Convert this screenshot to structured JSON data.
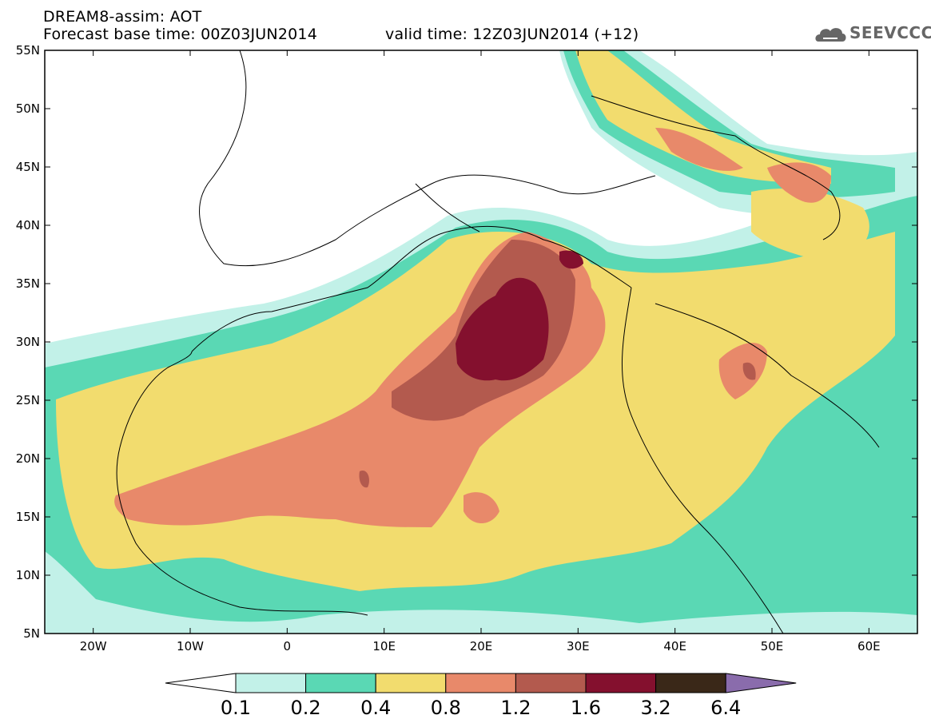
{
  "header": {
    "title_line1": "DREAM8-assim: AOT",
    "base_time": "Forecast base time: 00Z03JUN2014",
    "valid_time": "valid time: 12Z03JUN2014 (+12)",
    "logo_text": "SEEVCCC",
    "logo_icon": "cloud-icon"
  },
  "map": {
    "lon_range": [
      -25,
      65
    ],
    "lat_range": [
      5,
      55
    ],
    "lat_labels": [
      "55N",
      "50N",
      "45N",
      "40N",
      "35N",
      "30N",
      "25N",
      "20N",
      "15N",
      "10N",
      "5N"
    ],
    "lat_values": [
      55,
      50,
      45,
      40,
      35,
      30,
      25,
      20,
      15,
      10,
      5
    ],
    "lon_labels": [
      "20W",
      "10W",
      "0",
      "10E",
      "20E",
      "30E",
      "40E",
      "50E",
      "60E"
    ],
    "lon_values": [
      -20,
      -10,
      0,
      10,
      20,
      30,
      40,
      50,
      60
    ]
  },
  "colorbar": {
    "thresholds": [
      "0.1",
      "0.2",
      "0.4",
      "0.8",
      "1.2",
      "1.6",
      "3.2",
      "6.4"
    ],
    "colors": [
      "#c2f1e8",
      "#5ad8b4",
      "#f2dc6e",
      "#e8896a",
      "#b35a4e",
      "#84102e",
      "#3a2818",
      "#8a6cac"
    ]
  }
}
